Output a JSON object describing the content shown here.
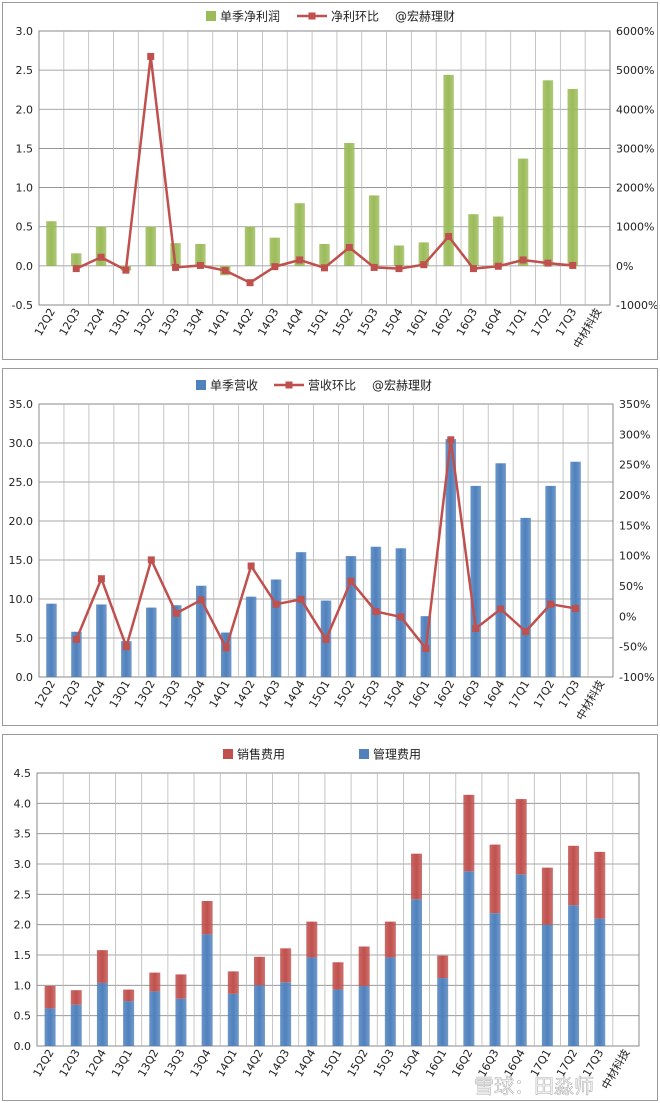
{
  "chart_data": [
    {
      "type": "bar",
      "categories": [
        "12Q2",
        "12Q3",
        "12Q4",
        "13Q1",
        "13Q2",
        "13Q3",
        "13Q4",
        "14Q1",
        "14Q2",
        "14Q3",
        "14Q4",
        "15Q1",
        "15Q2",
        "15Q3",
        "15Q4",
        "16Q1",
        "16Q2",
        "16Q3",
        "16Q4",
        "17Q1",
        "17Q2",
        "17Q3"
      ],
      "extra_category_label": "中材科技",
      "series": [
        {
          "name": "单季净利润",
          "kind": "bar",
          "axis": "left",
          "color": "#9bbb59",
          "values": [
            0.57,
            0.16,
            0.5,
            -0.06,
            0.5,
            0.29,
            0.28,
            -0.12,
            0.5,
            0.36,
            0.8,
            0.28,
            1.57,
            0.9,
            0.26,
            0.3,
            2.44,
            0.66,
            0.63,
            1.37,
            2.37,
            2.26
          ]
        },
        {
          "name": "净利环比",
          "kind": "line",
          "axis": "right",
          "color": "#c0504d",
          "values": [
            null,
            -70,
            220,
            -110,
            5350,
            -40,
            10,
            -120,
            -430,
            -20,
            150,
            -50,
            470,
            -40,
            -70,
            30,
            750,
            -70,
            -10,
            150,
            70,
            10
          ]
        }
      ],
      "note": "@宏赫理财",
      "ylim": [
        -0.5,
        3.0
      ],
      "y_ticks": [
        "-0.5",
        "0.0",
        "0.5",
        "1.0",
        "1.5",
        "2.0",
        "2.5",
        "3.0"
      ],
      "y2lim": [
        -1000,
        6000
      ],
      "y2_ticks": [
        "-1000%",
        "0%",
        "1000%",
        "2000%",
        "3000%",
        "4000%",
        "5000%",
        "6000%"
      ],
      "grid": true,
      "legend": "top"
    },
    {
      "type": "bar",
      "categories": [
        "12Q2",
        "12Q3",
        "12Q4",
        "13Q1",
        "13Q2",
        "13Q3",
        "13Q4",
        "14Q1",
        "14Q2",
        "14Q3",
        "14Q4",
        "15Q1",
        "15Q2",
        "15Q3",
        "15Q4",
        "16Q1",
        "16Q2",
        "16Q3",
        "16Q4",
        "17Q1",
        "17Q2",
        "17Q3"
      ],
      "extra_category_label": "中材科技",
      "series": [
        {
          "name": "单季营收",
          "kind": "bar",
          "axis": "left",
          "color": "#4f81bd",
          "values": [
            9.4,
            5.8,
            9.3,
            4.6,
            8.9,
            9.2,
            11.7,
            5.7,
            10.3,
            12.5,
            16.0,
            9.8,
            15.5,
            16.7,
            16.5,
            7.8,
            30.5,
            24.5,
            27.4,
            20.4,
            24.5,
            27.6
          ]
        },
        {
          "name": "营收环比",
          "kind": "line",
          "axis": "right",
          "color": "#c0504d",
          "values": [
            null,
            -38,
            62,
            -50,
            93,
            5,
            27,
            -52,
            83,
            20,
            28,
            -38,
            58,
            8,
            -1,
            -53,
            291,
            -20,
            12,
            -25,
            20,
            13
          ]
        }
      ],
      "note": "@宏赫理财",
      "ylim": [
        0,
        35
      ],
      "y_ticks": [
        "0.0",
        "5.0",
        "10.0",
        "15.0",
        "20.0",
        "25.0",
        "30.0",
        "35.0"
      ],
      "y2lim": [
        -100,
        350
      ],
      "y2_ticks": [
        "-100%",
        "-50%",
        "0%",
        "50%",
        "100%",
        "150%",
        "200%",
        "250%",
        "300%",
        "350%"
      ],
      "grid": true,
      "legend": "top"
    },
    {
      "type": "stacked_bar",
      "categories": [
        "12Q2",
        "12Q3",
        "12Q4",
        "13Q1",
        "13Q2",
        "13Q3",
        "13Q4",
        "14Q1",
        "14Q2",
        "14Q3",
        "14Q4",
        "15Q1",
        "15Q2",
        "15Q3",
        "15Q4",
        "16Q1",
        "16Q2",
        "16Q3",
        "16Q4",
        "17Q1",
        "17Q2",
        "17Q3"
      ],
      "extra_category_label": "中材科技",
      "series": [
        {
          "name": "管理费用",
          "color": "#4f81bd",
          "values": [
            0.62,
            0.68,
            1.04,
            0.74,
            0.9,
            0.78,
            1.84,
            0.86,
            1.0,
            1.05,
            1.46,
            0.93,
            0.99,
            1.46,
            2.42,
            1.12,
            2.88,
            2.19,
            2.83,
            2.0,
            2.32,
            2.1
          ]
        },
        {
          "name": "销售费用",
          "color": "#c0504d",
          "values": [
            0.37,
            0.24,
            0.54,
            0.19,
            0.31,
            0.4,
            0.55,
            0.37,
            0.47,
            0.56,
            0.59,
            0.45,
            0.65,
            0.59,
            0.75,
            0.37,
            1.26,
            1.13,
            1.24,
            0.94,
            0.98,
            1.1
          ]
        }
      ],
      "ylim": [
        0,
        4.5
      ],
      "y_ticks": [
        "0.0",
        "0.5",
        "1.0",
        "1.5",
        "2.0",
        "2.5",
        "3.0",
        "3.5",
        "4.0",
        "4.5"
      ],
      "grid": true,
      "legend": "top"
    }
  ],
  "watermark": "雪球：田淼师"
}
